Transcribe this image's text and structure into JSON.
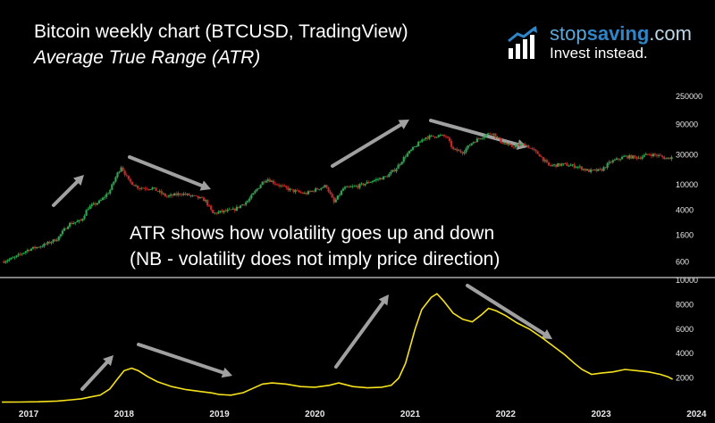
{
  "header": {
    "title": "Bitcoin weekly chart (BTCUSD, TradingView)",
    "subtitle": "Average True Range (ATR)"
  },
  "brand": {
    "name_part1": "stop",
    "name_part2": "saving",
    "name_part3": ".com",
    "tagline": "Invest instead.",
    "icon": "bar-chart-arrow-icon"
  },
  "annotation": {
    "line1": "ATR shows how volatility goes up and down",
    "line2": "(NB - volatility does not imply price direction)"
  },
  "colors": {
    "background": "#000000",
    "candle_up": "#2ea44f",
    "candle_down": "#c62828",
    "atr_line": "#f5e21b",
    "arrow": "#a0a0a0",
    "divider": "#ffffff",
    "brand_blue": "#2e86c8"
  },
  "chart_data": [
    {
      "type": "candlestick",
      "name": "price",
      "scale": "log",
      "y_ticks": [
        250000,
        90000,
        30000,
        10000,
        4000,
        1600,
        600
      ],
      "ylim": [
        300,
        250000
      ],
      "x_range": [
        2016.7,
        2024.1
      ],
      "close_path": [
        [
          2016.72,
          610
        ],
        [
          2016.85,
          700
        ],
        [
          2017.0,
          950
        ],
        [
          2017.15,
          1100
        ],
        [
          2017.3,
          1400
        ],
        [
          2017.42,
          2400
        ],
        [
          2017.55,
          2700
        ],
        [
          2017.62,
          4300
        ],
        [
          2017.75,
          5500
        ],
        [
          2017.85,
          8000
        ],
        [
          2017.92,
          14000
        ],
        [
          2017.97,
          19500
        ],
        [
          2018.05,
          11500
        ],
        [
          2018.15,
          9000
        ],
        [
          2018.3,
          8800
        ],
        [
          2018.45,
          6500
        ],
        [
          2018.6,
          7300
        ],
        [
          2018.75,
          6400
        ],
        [
          2018.85,
          5700
        ],
        [
          2018.93,
          3500
        ],
        [
          2019.0,
          3700
        ],
        [
          2019.15,
          4000
        ],
        [
          2019.3,
          5600
        ],
        [
          2019.45,
          11000
        ],
        [
          2019.5,
          12500
        ],
        [
          2019.6,
          10200
        ],
        [
          2019.75,
          8200
        ],
        [
          2019.9,
          7200
        ],
        [
          2020.0,
          8300
        ],
        [
          2020.12,
          9700
        ],
        [
          2020.2,
          5200
        ],
        [
          2020.3,
          8800
        ],
        [
          2020.45,
          9500
        ],
        [
          2020.6,
          11500
        ],
        [
          2020.75,
          13500
        ],
        [
          2020.85,
          18000
        ],
        [
          2020.95,
          29000
        ],
        [
          2021.05,
          40000
        ],
        [
          2021.15,
          56000
        ],
        [
          2021.3,
          60000
        ],
        [
          2021.38,
          58000
        ],
        [
          2021.45,
          36000
        ],
        [
          2021.55,
          33000
        ],
        [
          2021.65,
          47000
        ],
        [
          2021.78,
          61000
        ],
        [
          2021.86,
          67000
        ],
        [
          2021.95,
          48000
        ],
        [
          2022.05,
          40000
        ],
        [
          2022.2,
          44000
        ],
        [
          2022.35,
          30000
        ],
        [
          2022.45,
          20000
        ],
        [
          2022.6,
          21000
        ],
        [
          2022.75,
          19500
        ],
        [
          2022.87,
          16500
        ],
        [
          2023.0,
          17000
        ],
        [
          2023.1,
          23000
        ],
        [
          2023.25,
          28000
        ],
        [
          2023.4,
          27000
        ],
        [
          2023.5,
          30500
        ],
        [
          2023.6,
          29000
        ],
        [
          2023.68,
          26000
        ],
        [
          2023.75,
          27500
        ]
      ]
    },
    {
      "type": "line",
      "name": "ATR",
      "y_ticks": [
        10000,
        8000,
        6000,
        4000,
        2000
      ],
      "ylim": [
        0,
        10000
      ],
      "x_ticks": [
        "2017",
        "2018",
        "2019",
        "2020",
        "2021",
        "2022",
        "2023",
        "2024"
      ],
      "x_range": [
        2016.7,
        2024.1
      ],
      "points": [
        [
          2016.72,
          30
        ],
        [
          2016.9,
          40
        ],
        [
          2017.1,
          60
        ],
        [
          2017.3,
          120
        ],
        [
          2017.45,
          220
        ],
        [
          2017.55,
          300
        ],
        [
          2017.65,
          450
        ],
        [
          2017.75,
          600
        ],
        [
          2017.85,
          1100
        ],
        [
          2017.92,
          1800
        ],
        [
          2018.0,
          2600
        ],
        [
          2018.08,
          2800
        ],
        [
          2018.15,
          2600
        ],
        [
          2018.25,
          2100
        ],
        [
          2018.35,
          1700
        ],
        [
          2018.5,
          1300
        ],
        [
          2018.65,
          1050
        ],
        [
          2018.8,
          900
        ],
        [
          2018.92,
          780
        ],
        [
          2019.0,
          650
        ],
        [
          2019.12,
          600
        ],
        [
          2019.25,
          800
        ],
        [
          2019.35,
          1150
        ],
        [
          2019.45,
          1500
        ],
        [
          2019.55,
          1600
        ],
        [
          2019.7,
          1500
        ],
        [
          2019.85,
          1300
        ],
        [
          2020.0,
          1250
        ],
        [
          2020.15,
          1400
        ],
        [
          2020.25,
          1600
        ],
        [
          2020.4,
          1300
        ],
        [
          2020.55,
          1200
        ],
        [
          2020.7,
          1250
        ],
        [
          2020.8,
          1400
        ],
        [
          2020.88,
          2000
        ],
        [
          2020.95,
          3200
        ],
        [
          2021.0,
          4600
        ],
        [
          2021.05,
          6000
        ],
        [
          2021.12,
          7600
        ],
        [
          2021.22,
          8600
        ],
        [
          2021.28,
          8900
        ],
        [
          2021.35,
          8300
        ],
        [
          2021.45,
          7300
        ],
        [
          2021.55,
          6800
        ],
        [
          2021.65,
          6600
        ],
        [
          2021.75,
          7200
        ],
        [
          2021.82,
          7700
        ],
        [
          2021.9,
          7500
        ],
        [
          2022.0,
          7100
        ],
        [
          2022.12,
          6500
        ],
        [
          2022.25,
          6000
        ],
        [
          2022.38,
          5300
        ],
        [
          2022.5,
          4600
        ],
        [
          2022.62,
          3900
        ],
        [
          2022.72,
          3200
        ],
        [
          2022.8,
          2700
        ],
        [
          2022.9,
          2300
        ],
        [
          2023.0,
          2400
        ],
        [
          2023.12,
          2500
        ],
        [
          2023.25,
          2700
        ],
        [
          2023.38,
          2600
        ],
        [
          2023.5,
          2500
        ],
        [
          2023.62,
          2300
        ],
        [
          2023.7,
          2100
        ],
        [
          2023.75,
          1900
        ]
      ]
    }
  ]
}
